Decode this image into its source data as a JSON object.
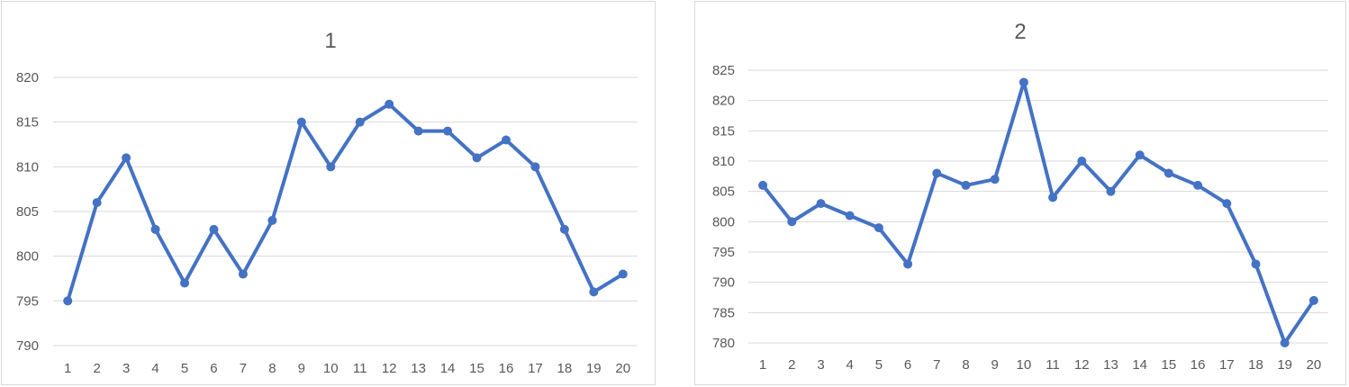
{
  "chart_data": [
    {
      "type": "line",
      "title": "1",
      "xlabel": "",
      "ylabel": "",
      "x": [
        1,
        2,
        3,
        4,
        5,
        6,
        7,
        8,
        9,
        10,
        11,
        12,
        13,
        14,
        15,
        16,
        17,
        18,
        19,
        20
      ],
      "series": [
        {
          "values": [
            795,
            806,
            811,
            803,
            797,
            803,
            798,
            804,
            815,
            810,
            815,
            817,
            814,
            814,
            811,
            813,
            810,
            803,
            796,
            798
          ],
          "color": "#4472c4"
        }
      ],
      "ylim": [
        790,
        820
      ],
      "yticks": [
        790,
        795,
        800,
        805,
        810,
        815,
        820
      ],
      "grid": true,
      "legend": "none",
      "markers": true
    },
    {
      "type": "line",
      "title": "2",
      "xlabel": "",
      "ylabel": "",
      "x": [
        1,
        2,
        3,
        4,
        5,
        6,
        7,
        8,
        9,
        10,
        11,
        12,
        13,
        14,
        15,
        16,
        17,
        18,
        19,
        20
      ],
      "series": [
        {
          "values": [
            806,
            800,
            803,
            801,
            799,
            793,
            808,
            806,
            807,
            823,
            804,
            810,
            805,
            811,
            808,
            806,
            803,
            793,
            780,
            787
          ],
          "color": "#4472c4"
        }
      ],
      "ylim": [
        780,
        825
      ],
      "yticks": [
        780,
        785,
        790,
        795,
        800,
        805,
        810,
        815,
        820,
        825
      ],
      "grid": true,
      "legend": "none",
      "markers": true
    }
  ]
}
